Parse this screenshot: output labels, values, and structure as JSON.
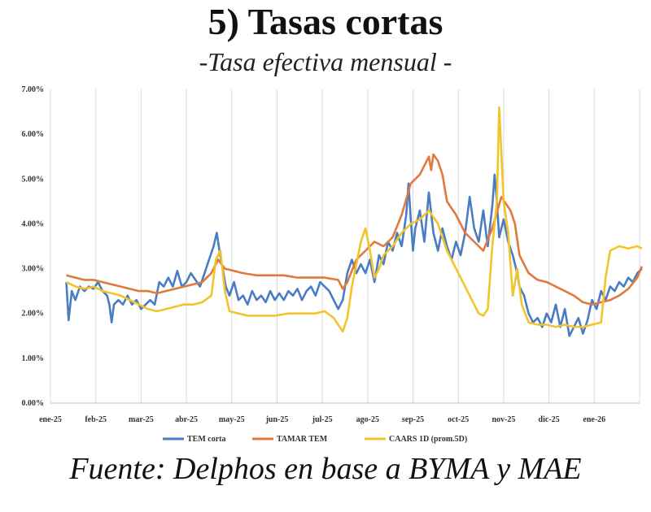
{
  "title": "5) Tasas cortas",
  "subtitle": "-Tasa efectiva mensual -",
  "source": "Fuente:  Delphos en base a BYMA y MAE",
  "chart_data": {
    "type": "line",
    "x_labels": [
      "ene-25",
      "feb-25",
      "mar-25",
      "abr-25",
      "may-25",
      "jun-25",
      "jul-25",
      "ago-25",
      "sep-25",
      "oct-25",
      "nov-25",
      "dic-25",
      "ene-26"
    ],
    "y_ticks": [
      "0.00%",
      "1.00%",
      "2.00%",
      "3.00%",
      "4.00%",
      "5.00%",
      "6.00%",
      "7.00%"
    ],
    "ylim": [
      0,
      7
    ],
    "grid": "vertical",
    "legend_position": "bottom",
    "series": [
      {
        "name": "TEM corta",
        "color": "#4a7cc4",
        "points": [
          [
            0,
            2.7
          ],
          [
            0.05,
            1.85
          ],
          [
            0.12,
            2.5
          ],
          [
            0.2,
            2.3
          ],
          [
            0.3,
            2.6
          ],
          [
            0.4,
            2.5
          ],
          [
            0.5,
            2.6
          ],
          [
            0.6,
            2.55
          ],
          [
            0.7,
            2.7
          ],
          [
            0.8,
            2.5
          ],
          [
            0.9,
            2.4
          ],
          [
            0.95,
            2.2
          ],
          [
            1.0,
            1.8
          ],
          [
            1.05,
            2.2
          ],
          [
            1.15,
            2.3
          ],
          [
            1.25,
            2.2
          ],
          [
            1.35,
            2.4
          ],
          [
            1.45,
            2.2
          ],
          [
            1.55,
            2.3
          ],
          [
            1.65,
            2.1
          ],
          [
            1.75,
            2.2
          ],
          [
            1.85,
            2.3
          ],
          [
            1.95,
            2.2
          ],
          [
            2.05,
            2.7
          ],
          [
            2.15,
            2.6
          ],
          [
            2.25,
            2.8
          ],
          [
            2.35,
            2.6
          ],
          [
            2.45,
            2.95
          ],
          [
            2.55,
            2.6
          ],
          [
            2.65,
            2.7
          ],
          [
            2.75,
            2.9
          ],
          [
            2.85,
            2.75
          ],
          [
            2.95,
            2.6
          ],
          [
            3.05,
            2.9
          ],
          [
            3.15,
            3.2
          ],
          [
            3.25,
            3.5
          ],
          [
            3.32,
            3.8
          ],
          [
            3.38,
            3.4
          ],
          [
            3.45,
            3.0
          ],
          [
            3.52,
            2.6
          ],
          [
            3.6,
            2.4
          ],
          [
            3.7,
            2.7
          ],
          [
            3.8,
            2.3
          ],
          [
            3.9,
            2.4
          ],
          [
            4.0,
            2.2
          ],
          [
            4.1,
            2.5
          ],
          [
            4.2,
            2.3
          ],
          [
            4.3,
            2.4
          ],
          [
            4.4,
            2.25
          ],
          [
            4.5,
            2.5
          ],
          [
            4.6,
            2.3
          ],
          [
            4.7,
            2.45
          ],
          [
            4.8,
            2.3
          ],
          [
            4.9,
            2.5
          ],
          [
            5.0,
            2.4
          ],
          [
            5.1,
            2.55
          ],
          [
            5.2,
            2.3
          ],
          [
            5.3,
            2.5
          ],
          [
            5.4,
            2.6
          ],
          [
            5.5,
            2.4
          ],
          [
            5.6,
            2.7
          ],
          [
            5.7,
            2.6
          ],
          [
            5.8,
            2.5
          ],
          [
            5.9,
            2.3
          ],
          [
            6.0,
            2.1
          ],
          [
            6.1,
            2.3
          ],
          [
            6.2,
            2.9
          ],
          [
            6.3,
            3.2
          ],
          [
            6.4,
            2.9
          ],
          [
            6.5,
            3.1
          ],
          [
            6.6,
            2.9
          ],
          [
            6.7,
            3.2
          ],
          [
            6.8,
            2.7
          ],
          [
            6.9,
            3.3
          ],
          [
            7.0,
            3.1
          ],
          [
            7.1,
            3.6
          ],
          [
            7.2,
            3.4
          ],
          [
            7.3,
            3.8
          ],
          [
            7.4,
            3.5
          ],
          [
            7.5,
            4.2
          ],
          [
            7.55,
            4.9
          ],
          [
            7.6,
            4.1
          ],
          [
            7.65,
            3.4
          ],
          [
            7.7,
            3.9
          ],
          [
            7.8,
            4.3
          ],
          [
            7.9,
            3.6
          ],
          [
            8.0,
            4.7
          ],
          [
            8.1,
            3.8
          ],
          [
            8.2,
            3.4
          ],
          [
            8.3,
            3.9
          ],
          [
            8.4,
            3.5
          ],
          [
            8.5,
            3.2
          ],
          [
            8.6,
            3.6
          ],
          [
            8.7,
            3.3
          ],
          [
            8.8,
            3.8
          ],
          [
            8.9,
            4.6
          ],
          [
            9.0,
            3.9
          ],
          [
            9.1,
            3.6
          ],
          [
            9.2,
            4.3
          ],
          [
            9.3,
            3.5
          ],
          [
            9.4,
            4.4
          ],
          [
            9.45,
            5.1
          ],
          [
            9.5,
            4.5
          ],
          [
            9.55,
            3.7
          ],
          [
            9.65,
            4.1
          ],
          [
            9.75,
            3.6
          ],
          [
            9.85,
            3.3
          ],
          [
            9.95,
            2.9
          ],
          [
            10.0,
            2.6
          ],
          [
            10.1,
            2.4
          ],
          [
            10.2,
            2.0
          ],
          [
            10.3,
            1.8
          ],
          [
            10.4,
            1.9
          ],
          [
            10.5,
            1.7
          ],
          [
            10.6,
            2.0
          ],
          [
            10.7,
            1.8
          ],
          [
            10.8,
            2.2
          ],
          [
            10.9,
            1.7
          ],
          [
            11.0,
            2.1
          ],
          [
            11.1,
            1.5
          ],
          [
            11.2,
            1.7
          ],
          [
            11.3,
            1.9
          ],
          [
            11.4,
            1.55
          ],
          [
            11.5,
            1.85
          ],
          [
            11.6,
            2.3
          ],
          [
            11.7,
            2.1
          ],
          [
            11.8,
            2.5
          ],
          [
            11.9,
            2.3
          ],
          [
            12.0,
            2.6
          ],
          [
            12.1,
            2.5
          ],
          [
            12.2,
            2.7
          ],
          [
            12.3,
            2.6
          ],
          [
            12.4,
            2.8
          ],
          [
            12.5,
            2.7
          ],
          [
            12.6,
            2.9
          ],
          [
            12.7,
            3.0
          ]
        ]
      },
      {
        "name": "TAMAR TEM",
        "color": "#e07a3c",
        "points": [
          [
            0,
            2.85
          ],
          [
            0.2,
            2.8
          ],
          [
            0.4,
            2.75
          ],
          [
            0.6,
            2.75
          ],
          [
            0.8,
            2.7
          ],
          [
            1.0,
            2.65
          ],
          [
            1.2,
            2.6
          ],
          [
            1.4,
            2.55
          ],
          [
            1.6,
            2.5
          ],
          [
            1.8,
            2.5
          ],
          [
            2.0,
            2.45
          ],
          [
            2.2,
            2.5
          ],
          [
            2.4,
            2.55
          ],
          [
            2.6,
            2.6
          ],
          [
            2.8,
            2.65
          ],
          [
            3.0,
            2.7
          ],
          [
            3.2,
            2.9
          ],
          [
            3.35,
            3.2
          ],
          [
            3.5,
            3.0
          ],
          [
            3.7,
            2.95
          ],
          [
            3.9,
            2.9
          ],
          [
            4.2,
            2.85
          ],
          [
            4.5,
            2.85
          ],
          [
            4.8,
            2.85
          ],
          [
            5.1,
            2.8
          ],
          [
            5.4,
            2.8
          ],
          [
            5.7,
            2.8
          ],
          [
            6.0,
            2.75
          ],
          [
            6.1,
            2.55
          ],
          [
            6.2,
            2.7
          ],
          [
            6.4,
            3.2
          ],
          [
            6.6,
            3.4
          ],
          [
            6.8,
            3.6
          ],
          [
            7.0,
            3.5
          ],
          [
            7.2,
            3.7
          ],
          [
            7.4,
            4.2
          ],
          [
            7.6,
            4.9
          ],
          [
            7.8,
            5.1
          ],
          [
            8.0,
            5.5
          ],
          [
            8.05,
            5.2
          ],
          [
            8.1,
            5.55
          ],
          [
            8.2,
            5.4
          ],
          [
            8.3,
            5.1
          ],
          [
            8.4,
            4.5
          ],
          [
            8.6,
            4.2
          ],
          [
            8.8,
            3.8
          ],
          [
            9.0,
            3.6
          ],
          [
            9.2,
            3.4
          ],
          [
            9.4,
            3.9
          ],
          [
            9.6,
            4.6
          ],
          [
            9.8,
            4.3
          ],
          [
            9.9,
            4.0
          ],
          [
            10.0,
            3.3
          ],
          [
            10.2,
            2.9
          ],
          [
            10.4,
            2.75
          ],
          [
            10.6,
            2.7
          ],
          [
            10.8,
            2.6
          ],
          [
            11.0,
            2.5
          ],
          [
            11.2,
            2.4
          ],
          [
            11.4,
            2.25
          ],
          [
            11.6,
            2.2
          ],
          [
            11.8,
            2.25
          ],
          [
            12.0,
            2.3
          ],
          [
            12.2,
            2.4
          ],
          [
            12.4,
            2.55
          ],
          [
            12.6,
            2.8
          ],
          [
            12.7,
            3.05
          ]
        ]
      },
      {
        "name": "CAARS 1D (prom.5D)",
        "color": "#f2c42a",
        "points": [
          [
            0,
            2.7
          ],
          [
            0.2,
            2.6
          ],
          [
            0.4,
            2.55
          ],
          [
            0.6,
            2.6
          ],
          [
            0.8,
            2.5
          ],
          [
            1.0,
            2.45
          ],
          [
            1.2,
            2.4
          ],
          [
            1.4,
            2.3
          ],
          [
            1.6,
            2.2
          ],
          [
            1.8,
            2.1
          ],
          [
            2.0,
            2.05
          ],
          [
            2.2,
            2.1
          ],
          [
            2.4,
            2.15
          ],
          [
            2.6,
            2.2
          ],
          [
            2.8,
            2.2
          ],
          [
            3.0,
            2.25
          ],
          [
            3.2,
            2.4
          ],
          [
            3.3,
            3.2
          ],
          [
            3.4,
            3.4
          ],
          [
            3.5,
            2.5
          ],
          [
            3.6,
            2.05
          ],
          [
            3.8,
            2.0
          ],
          [
            4.0,
            1.95
          ],
          [
            4.3,
            1.95
          ],
          [
            4.6,
            1.95
          ],
          [
            4.9,
            2.0
          ],
          [
            5.2,
            2.0
          ],
          [
            5.5,
            2.0
          ],
          [
            5.7,
            2.05
          ],
          [
            5.9,
            1.9
          ],
          [
            6.0,
            1.75
          ],
          [
            6.1,
            1.6
          ],
          [
            6.2,
            1.9
          ],
          [
            6.3,
            2.6
          ],
          [
            6.4,
            3.1
          ],
          [
            6.5,
            3.6
          ],
          [
            6.6,
            3.9
          ],
          [
            6.7,
            3.4
          ],
          [
            6.8,
            2.8
          ],
          [
            6.9,
            3.0
          ],
          [
            7.0,
            3.3
          ],
          [
            7.2,
            3.5
          ],
          [
            7.4,
            3.8
          ],
          [
            7.6,
            4.0
          ],
          [
            7.8,
            4.1
          ],
          [
            8.0,
            4.3
          ],
          [
            8.2,
            4.0
          ],
          [
            8.4,
            3.4
          ],
          [
            8.6,
            3.0
          ],
          [
            8.8,
            2.6
          ],
          [
            9.0,
            2.2
          ],
          [
            9.1,
            2.0
          ],
          [
            9.2,
            1.95
          ],
          [
            9.3,
            2.1
          ],
          [
            9.4,
            3.5
          ],
          [
            9.5,
            4.5
          ],
          [
            9.55,
            6.6
          ],
          [
            9.6,
            5.6
          ],
          [
            9.65,
            4.5
          ],
          [
            9.75,
            3.8
          ],
          [
            9.85,
            2.4
          ],
          [
            9.95,
            3.0
          ],
          [
            10.05,
            2.2
          ],
          [
            10.2,
            1.8
          ],
          [
            10.4,
            1.75
          ],
          [
            10.6,
            1.75
          ],
          [
            10.8,
            1.7
          ],
          [
            11.0,
            1.75
          ],
          [
            11.2,
            1.7
          ],
          [
            11.4,
            1.7
          ],
          [
            11.6,
            1.75
          ],
          [
            11.8,
            1.8
          ],
          [
            11.9,
            2.8
          ],
          [
            12.0,
            3.4
          ],
          [
            12.2,
            3.5
          ],
          [
            12.4,
            3.45
          ],
          [
            12.6,
            3.5
          ],
          [
            12.7,
            3.45
          ]
        ]
      }
    ]
  }
}
